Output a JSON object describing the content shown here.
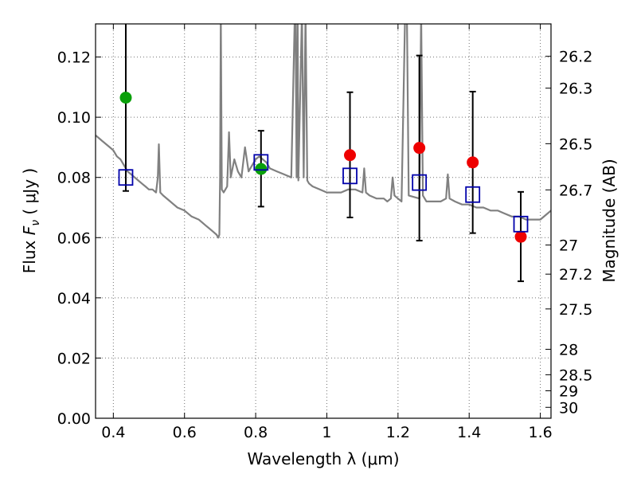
{
  "chart_data": {
    "type": "scatter",
    "title": "",
    "xlabel": "Wavelength  λ (μm)",
    "ylabel": "Flux  F_ν  ( μJy )",
    "ylabel_parts": {
      "pre": "Flux ",
      "sym": "F",
      "sub": "ν",
      "post": "  ( μJy )"
    },
    "y2label": "Magnitude (AB)",
    "xlim": [
      0.35,
      1.63
    ],
    "ylim": [
      0.0,
      0.131
    ],
    "grid": true,
    "x_ticks": [
      {
        "value": 0.4,
        "label": "0.4"
      },
      {
        "value": 0.6,
        "label": "0.6"
      },
      {
        "value": 0.8,
        "label": "0.8"
      },
      {
        "value": 1.0,
        "label": "1"
      },
      {
        "value": 1.2,
        "label": "1.2"
      },
      {
        "value": 1.4,
        "label": "1.4"
      },
      {
        "value": 1.6,
        "label": "1.6"
      }
    ],
    "y_ticks": [
      {
        "value": 0.0,
        "label": "0.00"
      },
      {
        "value": 0.02,
        "label": "0.02"
      },
      {
        "value": 0.04,
        "label": "0.04"
      },
      {
        "value": 0.06,
        "label": "0.06"
      },
      {
        "value": 0.08,
        "label": "0.08"
      },
      {
        "value": 0.1,
        "label": "0.10"
      },
      {
        "value": 0.12,
        "label": "0.12"
      }
    ],
    "y2_ticks": [
      {
        "mag": 26.2,
        "label": "26.2"
      },
      {
        "mag": 26.3,
        "label": "26.3"
      },
      {
        "mag": 26.5,
        "label": "26.5"
      },
      {
        "mag": 26.7,
        "label": "26.7"
      },
      {
        "mag": 27.0,
        "label": "27"
      },
      {
        "mag": 27.2,
        "label": "27.2"
      },
      {
        "mag": 27.5,
        "label": "27.5"
      },
      {
        "mag": 28.0,
        "label": "28"
      },
      {
        "mag": 28.5,
        "label": "28.5"
      },
      {
        "mag": 29.0,
        "label": "29"
      },
      {
        "mag": 30.0,
        "label": "30"
      }
    ],
    "colors": {
      "model": "#808080",
      "green_points": "#0aa00a",
      "red_points": "#ee0000",
      "squares": "#0000aa",
      "errorbars": "#000000"
    },
    "model_spectrum": {
      "x": [
        0.35,
        0.36,
        0.37,
        0.38,
        0.39,
        0.4,
        0.41,
        0.42,
        0.43,
        0.44,
        0.45,
        0.46,
        0.47,
        0.48,
        0.49,
        0.5,
        0.51,
        0.52,
        0.525,
        0.528,
        0.532,
        0.54,
        0.56,
        0.58,
        0.6,
        0.62,
        0.64,
        0.66,
        0.67,
        0.68,
        0.69,
        0.695,
        0.698,
        0.7,
        0.702,
        0.705,
        0.71,
        0.72,
        0.725,
        0.73,
        0.74,
        0.75,
        0.76,
        0.77,
        0.78,
        0.79,
        0.8,
        0.81,
        0.82,
        0.83,
        0.84,
        0.86,
        0.88,
        0.9,
        0.91,
        0.912,
        0.915,
        0.918,
        0.92,
        0.93,
        0.935,
        0.94,
        0.945,
        0.95,
        0.96,
        0.98,
        1.0,
        1.02,
        1.04,
        1.06,
        1.08,
        1.1,
        1.105,
        1.11,
        1.12,
        1.14,
        1.16,
        1.17,
        1.18,
        1.185,
        1.19,
        1.2,
        1.21,
        1.22,
        1.225,
        1.23,
        1.26,
        1.265,
        1.27,
        1.28,
        1.3,
        1.32,
        1.335,
        1.34,
        1.345,
        1.36,
        1.38,
        1.4,
        1.42,
        1.44,
        1.46,
        1.48,
        1.5,
        1.52,
        1.54,
        1.56,
        1.58,
        1.6,
        1.62,
        1.63
      ],
      "y": [
        0.094,
        0.093,
        0.092,
        0.091,
        0.09,
        0.089,
        0.087,
        0.086,
        0.084,
        0.082,
        0.081,
        0.08,
        0.079,
        0.078,
        0.077,
        0.076,
        0.076,
        0.075,
        0.08,
        0.091,
        0.075,
        0.074,
        0.072,
        0.07,
        0.069,
        0.067,
        0.066,
        0.064,
        0.063,
        0.062,
        0.061,
        0.06,
        0.061,
        0.08,
        0.135,
        0.076,
        0.075,
        0.077,
        0.095,
        0.08,
        0.086,
        0.082,
        0.08,
        0.09,
        0.082,
        0.084,
        0.086,
        0.087,
        0.086,
        0.085,
        0.083,
        0.082,
        0.081,
        0.08,
        0.135,
        0.135,
        0.08,
        0.135,
        0.079,
        0.135,
        0.08,
        0.135,
        0.079,
        0.078,
        0.077,
        0.076,
        0.075,
        0.075,
        0.075,
        0.076,
        0.076,
        0.075,
        0.083,
        0.075,
        0.074,
        0.073,
        0.073,
        0.072,
        0.073,
        0.08,
        0.074,
        0.073,
        0.072,
        0.135,
        0.135,
        0.074,
        0.073,
        0.135,
        0.074,
        0.072,
        0.072,
        0.072,
        0.073,
        0.081,
        0.073,
        0.072,
        0.071,
        0.071,
        0.07,
        0.07,
        0.069,
        0.069,
        0.068,
        0.067,
        0.067,
        0.066,
        0.066,
        0.066,
        0.068,
        0.069
      ]
    },
    "series": [
      {
        "marker": "circle",
        "color": "green",
        "points": [
          {
            "x": 0.435,
            "y": 0.1065
          },
          {
            "x": 0.815,
            "y": 0.0828
          }
        ]
      },
      {
        "marker": "circle",
        "color": "red",
        "points": [
          {
            "x": 1.065,
            "y": 0.0874
          },
          {
            "x": 1.26,
            "y": 0.0898
          },
          {
            "x": 1.41,
            "y": 0.085
          },
          {
            "x": 1.545,
            "y": 0.0603
          }
        ]
      },
      {
        "marker": "open-square",
        "color": "blue",
        "points": [
          {
            "x": 0.435,
            "y": 0.08,
            "err": [
              0.0755,
              0.14
            ]
          },
          {
            "x": 0.815,
            "y": 0.085,
            "err": [
              0.0703,
              0.0955
            ]
          },
          {
            "x": 1.065,
            "y": 0.0805,
            "err": [
              0.0667,
              0.1083
            ]
          },
          {
            "x": 1.26,
            "y": 0.0783,
            "err": [
              0.059,
              0.1205
            ]
          },
          {
            "x": 1.41,
            "y": 0.0743,
            "err": [
              0.0615,
              0.1085
            ]
          },
          {
            "x": 1.545,
            "y": 0.0645,
            "err": [
              0.0455,
              0.0752
            ]
          }
        ]
      }
    ]
  }
}
